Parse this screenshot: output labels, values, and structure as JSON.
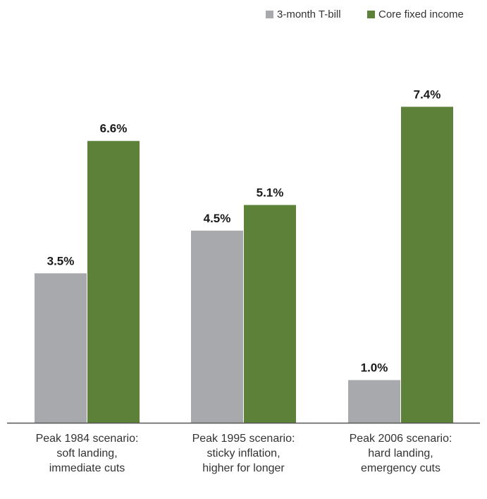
{
  "chart_data": {
    "type": "bar",
    "categories": [
      [
        "Peak 1984 scenario:",
        "soft landing,",
        "immediate cuts"
      ],
      [
        "Peak 1995 scenario:",
        "sticky inflation,",
        "higher for longer"
      ],
      [
        "Peak 2006 scenario:",
        "hard landing,",
        "emergency cuts"
      ]
    ],
    "series": [
      {
        "name": "3-month T-bill",
        "color": "#a7a9ac",
        "values": [
          3.5,
          4.5,
          1.0
        ],
        "labels": [
          "3.5%",
          "4.5%",
          "1.0%"
        ]
      },
      {
        "name": "Core fixed income",
        "color": "#5e8139",
        "values": [
          6.6,
          5.1,
          7.4
        ],
        "labels": [
          "6.6%",
          "5.1%",
          "7.4%"
        ]
      }
    ],
    "ylim": [
      0,
      8
    ],
    "legend_position": "top-right",
    "grid": false,
    "axis_color": "#555555"
  }
}
